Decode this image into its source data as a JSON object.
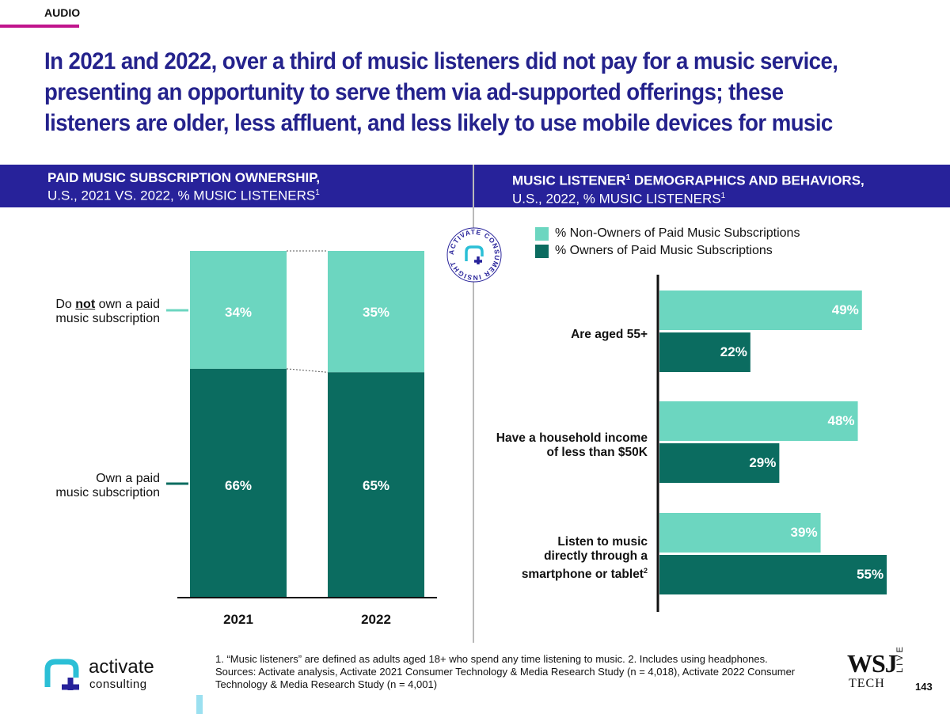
{
  "section_tag": "AUDIO",
  "headline": "In 2021 and 2022, over a third of music listeners did not pay for a music service, presenting an opportunity to serve them via ad-supported offerings; these listeners are older, less affluent, and less likely to use mobile devices for music",
  "colors": {
    "light": "#6cd6c0",
    "dark": "#0b6c60",
    "header": "#27229a",
    "headline": "#24228c",
    "accent": "#c0148c"
  },
  "left_panel": {
    "title_line1": "PAID MUSIC SUBSCRIPTION OWNERSHIP,",
    "title_line2": "U.S., 2021 VS. 2022, % MUSIC LISTENERS",
    "title_sup": "1",
    "row_not_own_pre": "Do ",
    "row_not_own_em": "not",
    "row_not_own_post": " own a paid",
    "row_not_own_line2": "music subscription",
    "row_own_line1": "Own a paid",
    "row_own_line2": "music subscription"
  },
  "right_panel": {
    "title_line1_a": "MUSIC LISTENER",
    "title_line1_sup": "1",
    "title_line1_b": " DEMOGRAPHICS AND BEHAVIORS,",
    "title_line2": "U.S., 2022, % MUSIC LISTENERS",
    "title_sup": "1",
    "legend_nonowners": "% Non-Owners of Paid Music Subscriptions",
    "legend_owners": "% Owners of Paid Music Subscriptions",
    "cat1": "Are aged 55+",
    "cat2_line1": "Have a household income",
    "cat2_line2": "of less than $50K",
    "cat3_line1": "Listen to music",
    "cat3_line2": "directly through a",
    "cat3_line3": "smartphone or tablet",
    "cat3_sup": "2"
  },
  "seal": {
    "text": "ACTIVATE CONSUMER INSIGHT"
  },
  "chart_data": [
    {
      "type": "bar",
      "stacked": true,
      "categories": [
        "2021",
        "2022"
      ],
      "series": [
        {
          "name": "Own a paid music subscription",
          "values": [
            66,
            65
          ],
          "labels": [
            "66%",
            "65%"
          ]
        },
        {
          "name": "Do not own a paid music subscription",
          "values": [
            34,
            35
          ],
          "labels": [
            "34%",
            "35%"
          ]
        }
      ],
      "ylim": [
        0,
        100
      ]
    },
    {
      "type": "bar",
      "orientation": "horizontal",
      "categories": [
        "Are aged 55+",
        "Have a household income of less than $50K",
        "Listen to music directly through a smartphone or tablet"
      ],
      "series": [
        {
          "name": "% Non-Owners of Paid Music Subscriptions",
          "values": [
            49,
            48,
            39
          ],
          "labels": [
            "49%",
            "48%",
            "39%"
          ]
        },
        {
          "name": "% Owners of Paid Music Subscriptions",
          "values": [
            22,
            29,
            55
          ],
          "labels": [
            "22%",
            "29%",
            "55%"
          ]
        }
      ],
      "xlim": [
        0,
        100
      ]
    }
  ],
  "footnote": {
    "line1": "1. “Music listeners” are defined as adults aged 18+ who spend any time listening to music.  2. Includes using headphones.",
    "line2": "Sources: Activate analysis, Activate 2021 Consumer Technology & Media Research Study (n = 4,018), Activate 2022 Consumer",
    "line3": "Technology & Media Research Study (n = 4,001)"
  },
  "logo": {
    "line1": "activate",
    "line2": "consulting"
  },
  "wsj": {
    "line1": "WSJ",
    "line2": "TECH",
    "line3": "LIVE"
  },
  "page_number": "143"
}
